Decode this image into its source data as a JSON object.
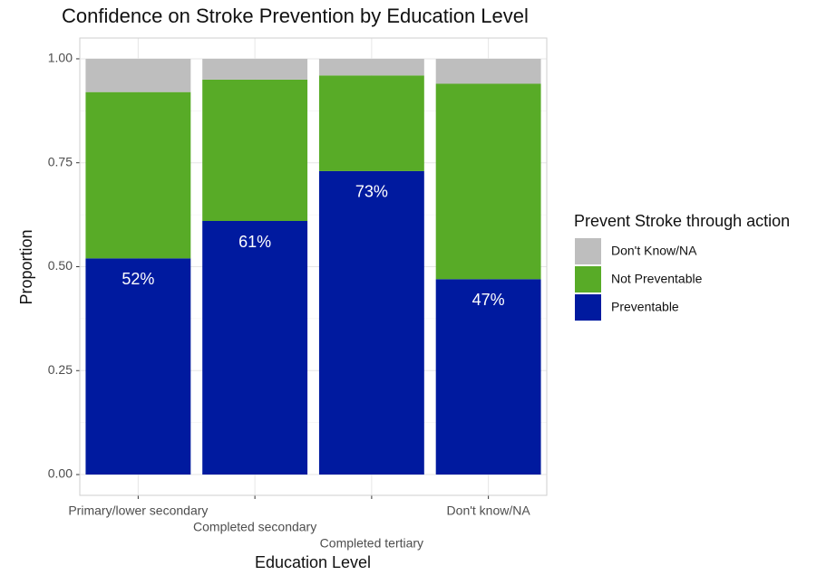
{
  "chart_data": {
    "type": "stacked_bar",
    "title": "Confidence on Stroke Prevention by Education Level",
    "x_label": "Education Level",
    "y_label": "Proportion",
    "legend_title": "Prevent Stroke through action",
    "legend_position": "right",
    "grid": true,
    "categories": [
      "Primary/lower secondary",
      "Completed secondary",
      "Completed tertiary",
      "Don't know/NA"
    ],
    "ylim": [
      -0.05,
      1.05
    ],
    "yticks": [
      {
        "value": 0,
        "label": "0.00"
      },
      {
        "value": 0.25,
        "label": "0.25"
      },
      {
        "value": 0.5,
        "label": "0.50"
      },
      {
        "value": 0.75,
        "label": "0.75"
      },
      {
        "value": 1,
        "label": "1.00"
      }
    ],
    "series": [
      {
        "name": "Don't Know/NA",
        "color": "#bebebe",
        "values": [
          0.08,
          0.05,
          0.04,
          0.06
        ]
      },
      {
        "name": "Not Preventable",
        "color": "#58ab27",
        "values": [
          0.4,
          0.34,
          0.23,
          0.47
        ]
      },
      {
        "name": "Preventable",
        "color": "#001a9f",
        "values": [
          0.52,
          0.61,
          0.73,
          0.47
        ],
        "value_labels": [
          "52%",
          "61%",
          "73%",
          "47%"
        ]
      }
    ]
  }
}
